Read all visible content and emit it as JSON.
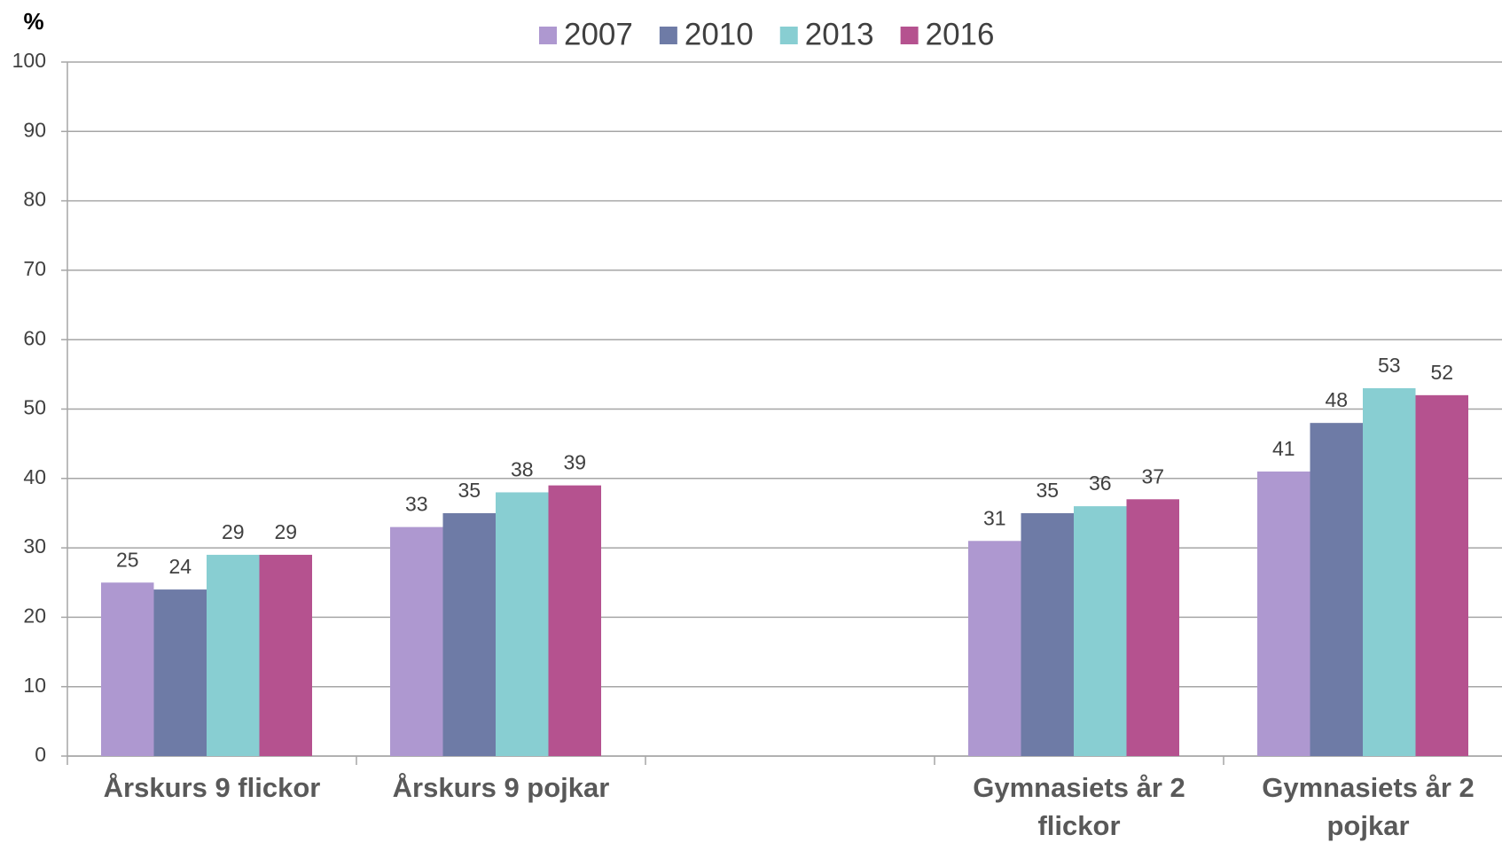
{
  "chart_data": {
    "type": "bar",
    "y_label": "%",
    "categories": [
      "Årskurs 9 flickor",
      "Årskurs 9 pojkar",
      null,
      "Gymnasiets år 2 flickor",
      "Gymnasiets år 2 pojkar"
    ],
    "series": [
      {
        "name": "2007",
        "color": "#ae98d0",
        "values": [
          25,
          33,
          null,
          31,
          41
        ]
      },
      {
        "name": "2010",
        "color": "#6e7ba6",
        "values": [
          24,
          35,
          null,
          35,
          48
        ]
      },
      {
        "name": "2013",
        "color": "#88ced2",
        "values": [
          29,
          38,
          null,
          36,
          53
        ]
      },
      {
        "name": "2016",
        "color": "#b5528f",
        "values": [
          29,
          39,
          null,
          37,
          52
        ]
      }
    ],
    "ylim": [
      0,
      100
    ],
    "yticks": [
      0,
      10,
      20,
      30,
      40,
      50,
      60,
      70,
      80,
      90,
      100
    ],
    "grid": true,
    "legend": "top"
  }
}
